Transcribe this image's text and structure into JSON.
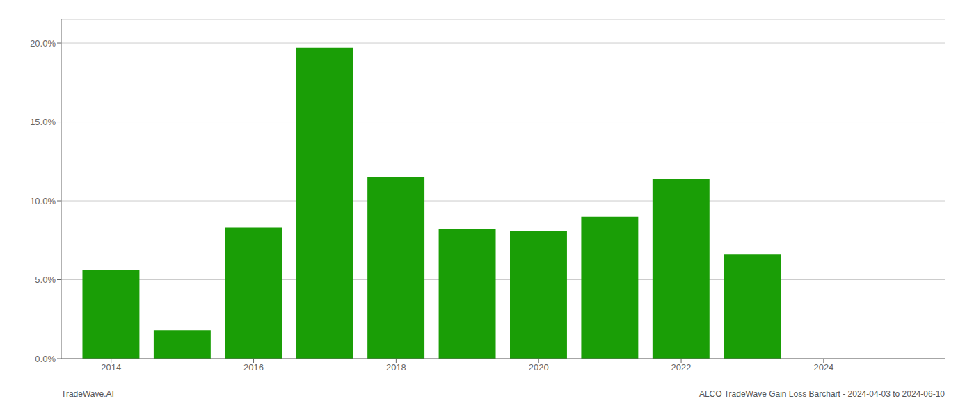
{
  "chart_data": {
    "type": "bar",
    "x": [
      2014,
      2015,
      2016,
      2017,
      2018,
      2019,
      2020,
      2021,
      2022,
      2023
    ],
    "values": [
      0.056,
      0.018,
      0.083,
      0.197,
      0.115,
      0.082,
      0.081,
      0.09,
      0.114,
      0.066
    ],
    "color": "#1a9e06",
    "xlim": [
      2013.3,
      2025.7
    ],
    "xticks": [
      2014,
      2016,
      2018,
      2020,
      2022,
      2024
    ],
    "ylim": [
      0,
      0.215
    ],
    "yticks": [
      {
        "value": 0,
        "label": "0.0%"
      },
      {
        "value": 0.05,
        "label": "5.0%"
      },
      {
        "value": 0.1,
        "label": "10.0%"
      },
      {
        "value": 0.15,
        "label": "15.0%"
      },
      {
        "value": 0.2,
        "label": "20.0%"
      }
    ],
    "grid": true,
    "annotations": [
      "TradeWave.AI",
      "ALCO TradeWave Gain Loss Barchart - 2024-04-03 to 2024-06-10"
    ]
  }
}
